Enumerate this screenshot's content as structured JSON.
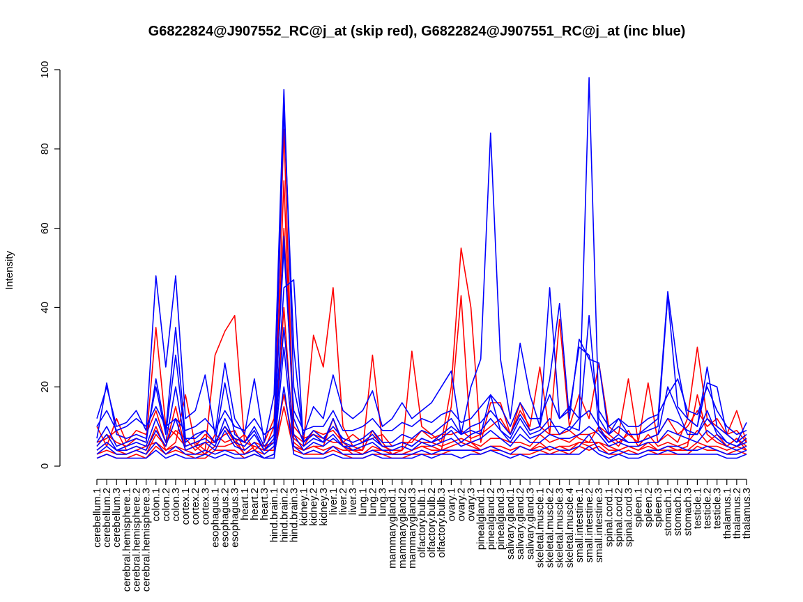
{
  "chart_data": {
    "type": "line",
    "title": "G6822824@J907552_RC@j_at (skip red), G6822824@J907551_RC@j_at (inc blue)",
    "ylabel": "Intensity",
    "xlabel": "",
    "ylim": [
      0,
      100
    ],
    "yticks": [
      0,
      20,
      40,
      60,
      80,
      100
    ],
    "grid": false,
    "legend": "none",
    "categories": [
      "cerebellum.1",
      "cerebellum.2",
      "cerebellum.3",
      "cerebral.hemisphere.1",
      "cerebral.hemisphere.2",
      "cerebral.hemisphere.3",
      "colon.1",
      "colon.2",
      "colon.3",
      "cortex.1",
      "cortex.2",
      "cortex.3",
      "esophagus.1",
      "esophagus.2",
      "esophagus.3",
      "heart.1",
      "heart.2",
      "heart.3",
      "hind.brain.1",
      "hind.brain.2",
      "hind.brain.3",
      "kidney.1",
      "kidney.2",
      "kidney.3",
      "liver.1",
      "liver.2",
      "liver.3",
      "lung.1",
      "lung.2",
      "lung.3",
      "mammarygland.1",
      "mammarygland.2",
      "mammarygland.3",
      "olfactory.bulb.1",
      "olfactory.bulb.2",
      "olfactory.bulb.3",
      "ovary.1",
      "ovary.2",
      "ovary.3",
      "pinealgland.1",
      "pinealgland.2",
      "pinealgland.3",
      "salivary.gland.1",
      "salivary.gland.2",
      "salivary.gland.3",
      "skeletal.muscle.1",
      "skeletal.muscle.2",
      "skeletal.muscle.3",
      "skeletal.muscle.4",
      "small.intestine.1",
      "small.intestine.2",
      "small.intestine.3",
      "spinal.cord.1",
      "spinal.cord.2",
      "spinal.cord.3",
      "spleen.1",
      "spleen.2",
      "spleen.3",
      "stomach.1",
      "stomach.2",
      "stomach.3",
      "testicle.1",
      "testicle.2",
      "testicle.3",
      "thalamus.1",
      "thalamus.2",
      "thalamus.3"
    ],
    "colors": {
      "skip": "#ff0000",
      "inc": "#0000ff"
    },
    "series": [
      {
        "group": "skip",
        "values": [
          5,
          8,
          6,
          5,
          7,
          6,
          35,
          10,
          8,
          5,
          6,
          4,
          28,
          34,
          38,
          6,
          5,
          4,
          10,
          85,
          8,
          6,
          33,
          25,
          45,
          10,
          5,
          4,
          28,
          6,
          3,
          4,
          29,
          10,
          8,
          6,
          20,
          55,
          40,
          6,
          16,
          16,
          8,
          14,
          10,
          25,
          8,
          37,
          10,
          18,
          12,
          26,
          10,
          8,
          22,
          6,
          21,
          6,
          8,
          6,
          12,
          30,
          12,
          10,
          8,
          14,
          6
        ]
      },
      {
        "group": "skip",
        "values": [
          3,
          4,
          3,
          3,
          4,
          3,
          8,
          5,
          15,
          4,
          3,
          3,
          8,
          6,
          7,
          3,
          4,
          3,
          5,
          18,
          6,
          4,
          5,
          5,
          12,
          5,
          3,
          3,
          5,
          4,
          3,
          3,
          4,
          5,
          5,
          4,
          15,
          43,
          6,
          4,
          5,
          5,
          4,
          5,
          4,
          6,
          4,
          5,
          5,
          6,
          6,
          6,
          5,
          4,
          5,
          4,
          6,
          4,
          5,
          4,
          5,
          18,
          8,
          6,
          5,
          7,
          4
        ]
      },
      {
        "group": "skip",
        "values": [
          10,
          5,
          12,
          6,
          9,
          8,
          14,
          6,
          9,
          7,
          4,
          6,
          6,
          8,
          9,
          4,
          6,
          5,
          6,
          72,
          7,
          5,
          9,
          8,
          9,
          6,
          4,
          4,
          9,
          5,
          4,
          4,
          7,
          6,
          6,
          5,
          6,
          7,
          6,
          5,
          7,
          7,
          6,
          6,
          5,
          8,
          6,
          7,
          6,
          8,
          8,
          9,
          7,
          5,
          9,
          5,
          8,
          5,
          6,
          5,
          6,
          9,
          6,
          8,
          5,
          7,
          5
        ]
      },
      {
        "group": "skip",
        "values": [
          2,
          3,
          2,
          2,
          3,
          2,
          5,
          3,
          4,
          3,
          2,
          2,
          4,
          4,
          4,
          2,
          3,
          2,
          3,
          15,
          4,
          3,
          3,
          3,
          4,
          3,
          2,
          2,
          3,
          3,
          2,
          2,
          3,
          3,
          3,
          3,
          4,
          4,
          4,
          3,
          4,
          4,
          3,
          3,
          3,
          4,
          3,
          4,
          3,
          5,
          4,
          5,
          3,
          3,
          4,
          3,
          4,
          3,
          3,
          3,
          3,
          5,
          4,
          4,
          3,
          4,
          3
        ]
      },
      {
        "group": "skip",
        "values": [
          6,
          7,
          9,
          4,
          5,
          4,
          10,
          4,
          6,
          18,
          5,
          8,
          6,
          10,
          6,
          8,
          4,
          6,
          12,
          60,
          10,
          7,
          8,
          7,
          6,
          6,
          8,
          6,
          7,
          8,
          5,
          6,
          6,
          9,
          7,
          8,
          8,
          9,
          7,
          8,
          10,
          12,
          8,
          16,
          9,
          10,
          8,
          8,
          9,
          7,
          6,
          10,
          8,
          6,
          8,
          6,
          7,
          8,
          12,
          8,
          10,
          14,
          10,
          12,
          8,
          9,
          6
        ]
      },
      {
        "group": "skip",
        "values": [
          4,
          6,
          4,
          3,
          4,
          5,
          6,
          4,
          5,
          4,
          5,
          3,
          5,
          5,
          6,
          3,
          5,
          4,
          4,
          40,
          5,
          4,
          5,
          4,
          5,
          4,
          4,
          3,
          4,
          4,
          3,
          3,
          4,
          5,
          4,
          4,
          5,
          6,
          5,
          4,
          5,
          5,
          4,
          5,
          4,
          5,
          4,
          5,
          4,
          6,
          5,
          6,
          4,
          4,
          5,
          4,
          5,
          4,
          4,
          4,
          4,
          6,
          5,
          5,
          4,
          5,
          4
        ]
      },
      {
        "group": "inc",
        "values": [
          12,
          20,
          10,
          11,
          14,
          9,
          48,
          25,
          48,
          12,
          14,
          23,
          8,
          26,
          12,
          8,
          22,
          6,
          18,
          95,
          20,
          8,
          15,
          12,
          23,
          14,
          12,
          14,
          19,
          10,
          12,
          16,
          12,
          14,
          16,
          20,
          24,
          8,
          20,
          27,
          84,
          27,
          12,
          31,
          18,
          10,
          45,
          12,
          15,
          12,
          98,
          12,
          8,
          12,
          8,
          8,
          10,
          12,
          44,
          25,
          12,
          10,
          25,
          10,
          8,
          6,
          11
        ]
      },
      {
        "group": "inc",
        "values": [
          7,
          21,
          8,
          7,
          8,
          7,
          20,
          8,
          28,
          6,
          8,
          9,
          6,
          10,
          7,
          6,
          9,
          4,
          7,
          58,
          12,
          6,
          8,
          6,
          12,
          6,
          5,
          6,
          8,
          5,
          5,
          6,
          5,
          7,
          6,
          8,
          10,
          8,
          9,
          8,
          18,
          9,
          7,
          12,
          8,
          9,
          12,
          8,
          10,
          9,
          38,
          9,
          6,
          7,
          6,
          6,
          7,
          8,
          20,
          14,
          8,
          8,
          14,
          8,
          6,
          5,
          7
        ]
      },
      {
        "group": "inc",
        "values": [
          10,
          14,
          9,
          10,
          12,
          10,
          15,
          10,
          12,
          9,
          10,
          12,
          9,
          14,
          10,
          9,
          12,
          8,
          10,
          55,
          14,
          9,
          10,
          10,
          14,
          9,
          9,
          10,
          12,
          9,
          9,
          11,
          10,
          12,
          11,
          13,
          14,
          11,
          12,
          15,
          18,
          15,
          10,
          16,
          12,
          12,
          18,
          12,
          14,
          30,
          28,
          14,
          10,
          12,
          10,
          10,
          12,
          13,
          18,
          22,
          14,
          13,
          20,
          14,
          10,
          8,
          9
        ]
      },
      {
        "group": "inc",
        "values": [
          3,
          5,
          3,
          3,
          4,
          3,
          6,
          3,
          5,
          3,
          3,
          4,
          3,
          4,
          3,
          3,
          4,
          2,
          3,
          30,
          5,
          3,
          4,
          3,
          5,
          3,
          3,
          3,
          4,
          3,
          3,
          3,
          3,
          4,
          3,
          4,
          4,
          4,
          4,
          4,
          5,
          4,
          3,
          5,
          4,
          4,
          5,
          4,
          4,
          5,
          8,
          4,
          3,
          4,
          3,
          3,
          4,
          4,
          5,
          5,
          4,
          4,
          5,
          4,
          3,
          3,
          4
        ]
      },
      {
        "group": "inc",
        "values": [
          6,
          10,
          5,
          6,
          7,
          6,
          22,
          9,
          35,
          7,
          7,
          9,
          6,
          21,
          8,
          6,
          10,
          5,
          8,
          90,
          30,
          6,
          9,
          7,
          10,
          7,
          6,
          7,
          9,
          6,
          6,
          8,
          7,
          9,
          8,
          10,
          12,
          8,
          10,
          11,
          14,
          11,
          8,
          13,
          9,
          10,
          22,
          41,
          12,
          32,
          27,
          26,
          8,
          10,
          8,
          8,
          9,
          10,
          43,
          15,
          12,
          10,
          21,
          20,
          8,
          6,
          8
        ]
      },
      {
        "group": "inc",
        "values": [
          2,
          3,
          2,
          2,
          2,
          2,
          4,
          2,
          3,
          2,
          2,
          3,
          2,
          3,
          2,
          2,
          3,
          2,
          2,
          20,
          3,
          2,
          2,
          2,
          3,
          2,
          2,
          2,
          3,
          2,
          2,
          2,
          2,
          3,
          2,
          3,
          3,
          2,
          3,
          3,
          4,
          3,
          2,
          3,
          2,
          3,
          3,
          3,
          3,
          3,
          5,
          3,
          2,
          3,
          2,
          2,
          3,
          3,
          4,
          3,
          3,
          3,
          3,
          3,
          2,
          2,
          3
        ]
      },
      {
        "group": "inc",
        "values": [
          5,
          8,
          4,
          5,
          6,
          5,
          12,
          6,
          20,
          5,
          6,
          7,
          5,
          12,
          6,
          5,
          8,
          4,
          6,
          45,
          47,
          5,
          7,
          6,
          8,
          5,
          5,
          6,
          7,
          5,
          5,
          6,
          5,
          7,
          6,
          7,
          9,
          6,
          8,
          9,
          12,
          9,
          6,
          10,
          7,
          8,
          10,
          10,
          9,
          12,
          14,
          10,
          6,
          8,
          6,
          6,
          7,
          8,
          12,
          11,
          9,
          8,
          12,
          9,
          6,
          5,
          6
        ]
      },
      {
        "group": "inc",
        "values": [
          4,
          6,
          4,
          4,
          5,
          4,
          9,
          5,
          12,
          4,
          5,
          6,
          4,
          9,
          5,
          4,
          6,
          3,
          5,
          35,
          8,
          4,
          6,
          5,
          7,
          5,
          4,
          5,
          6,
          4,
          4,
          5,
          4,
          6,
          5,
          6,
          7,
          5,
          6,
          7,
          9,
          7,
          5,
          8,
          6,
          6,
          8,
          7,
          7,
          8,
          10,
          8,
          5,
          6,
          5,
          5,
          6,
          6,
          9,
          8,
          7,
          6,
          9,
          7,
          5,
          4,
          5
        ]
      }
    ]
  }
}
